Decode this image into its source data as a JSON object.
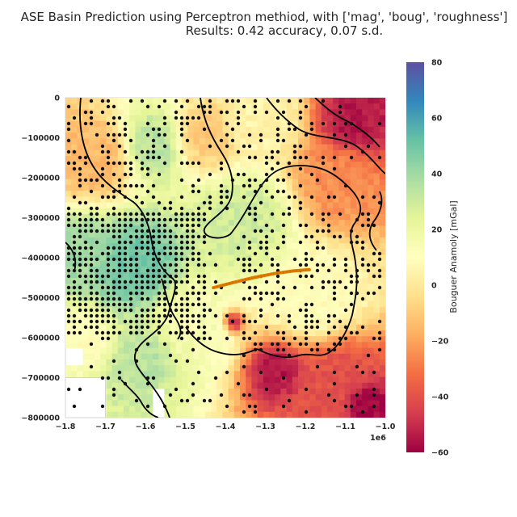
{
  "chart_data": {
    "type": "heatmap",
    "title_line1": "ASE Basin Prediction using Perceptron methiod, with ['mag', 'boug', 'roughness']",
    "title_line2": "Results: 0.42 accuracy, 0.07 s.d.",
    "xlabel": "",
    "ylabel": "",
    "x_offset_label": "1e6",
    "xlim": [
      -1.8,
      -1.0
    ],
    "ylim": [
      -800000,
      0
    ],
    "x_ticks": [
      -1.8,
      -1.7,
      -1.6,
      -1.5,
      -1.4,
      -1.3,
      -1.2,
      -1.1,
      -1.0
    ],
    "x_tick_labels": [
      "−1.8",
      "−1.7",
      "−1.6",
      "−1.5",
      "−1.4",
      "−1.3",
      "−1.2",
      "−1.1",
      "−1.0"
    ],
    "y_ticks": [
      0,
      -100000,
      -200000,
      -300000,
      -400000,
      -500000,
      -600000,
      -700000,
      -800000
    ],
    "y_tick_labels": [
      "0",
      "−100000",
      "−200000",
      "−300000",
      "−400000",
      "−500000",
      "−600000",
      "−700000",
      "−800000"
    ],
    "grid": true,
    "colorbar": {
      "label": "Bouguer Anamoly [mGal]",
      "min": -60,
      "max": 80,
      "ticks": [
        80,
        60,
        40,
        20,
        0,
        -20,
        -40,
        -60
      ],
      "tick_labels": [
        "80",
        "60",
        "40",
        "20",
        "0",
        "−20",
        "−40",
        "−60"
      ],
      "colormap": "Spectral"
    },
    "heatmap_regions": [
      {
        "x": -1.72,
        "y": -150000,
        "value": -15,
        "radius": 0.09
      },
      {
        "x": -1.58,
        "y": -120000,
        "value": 35,
        "radius": 0.08
      },
      {
        "x": -1.45,
        "y": -100000,
        "value": -10,
        "radius": 0.08
      },
      {
        "x": -1.3,
        "y": -60000,
        "value": 5,
        "radius": 0.1
      },
      {
        "x": -1.08,
        "y": -60000,
        "value": -55,
        "radius": 0.09
      },
      {
        "x": -1.12,
        "y": -200000,
        "value": -25,
        "radius": 0.1
      },
      {
        "x": -1.35,
        "y": -300000,
        "value": 30,
        "radius": 0.1
      },
      {
        "x": -1.62,
        "y": -420000,
        "value": 50,
        "radius": 0.09
      },
      {
        "x": -1.75,
        "y": -380000,
        "value": 40,
        "radius": 0.07
      },
      {
        "x": -1.48,
        "y": -560000,
        "value": 15,
        "radius": 0.1
      },
      {
        "x": -1.38,
        "y": -560000,
        "value": -50,
        "radius": 0.025
      },
      {
        "x": -1.48,
        "y": -570000,
        "value": -45,
        "radius": 0.015
      },
      {
        "x": -1.27,
        "y": -680000,
        "value": -55,
        "radius": 0.06
      },
      {
        "x": -1.12,
        "y": -700000,
        "value": -40,
        "radius": 0.09
      },
      {
        "x": -1.05,
        "y": -760000,
        "value": -60,
        "radius": 0.05
      },
      {
        "x": -1.18,
        "y": -500000,
        "value": 10,
        "radius": 0.1
      },
      {
        "x": -1.6,
        "y": -650000,
        "value": 35,
        "radius": 0.07
      },
      {
        "x": -1.75,
        "y": -600000,
        "value": 10,
        "radius": 0.06
      }
    ],
    "prediction_line": {
      "color": "#e07b00",
      "x": [
        -1.43,
        -1.38,
        -1.33,
        -1.28,
        -1.23,
        -1.19
      ],
      "y": [
        -475000,
        -462000,
        -450000,
        -440000,
        -433000,
        -430000
      ]
    },
    "point_color": "#111111",
    "outline_color": "#000000"
  }
}
